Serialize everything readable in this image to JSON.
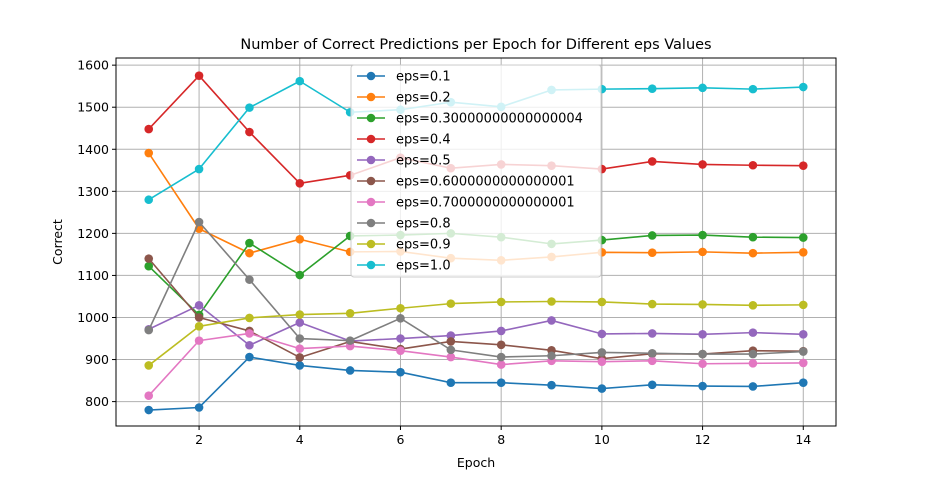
{
  "chart_data": {
    "type": "line",
    "title": "Number of Correct Predictions per Epoch for Different eps Values",
    "xlabel": "Epoch",
    "ylabel": "Correct",
    "xlim": [
      0.35,
      14.65
    ],
    "ylim": [
      742,
      1617
    ],
    "xticks": [
      2,
      4,
      6,
      8,
      10,
      12,
      14
    ],
    "yticks": [
      800,
      900,
      1000,
      1100,
      1200,
      1300,
      1400,
      1500,
      1600
    ],
    "grid": true,
    "legend_position": "upper-center",
    "x": [
      1,
      2,
      3,
      4,
      5,
      6,
      7,
      8,
      9,
      10,
      11,
      12,
      13,
      14
    ],
    "series": [
      {
        "name": "eps=0.1",
        "color": "#1f77b4",
        "values": [
          780,
          786,
          906,
          886,
          874,
          870,
          845,
          845,
          839,
          831,
          840,
          837,
          836,
          845
        ]
      },
      {
        "name": "eps=0.2",
        "color": "#ff7f0e",
        "values": [
          1391,
          1211,
          1153,
          1186,
          1156,
          1157,
          1141,
          1136,
          1144,
          1155,
          1154,
          1156,
          1153,
          1155
        ]
      },
      {
        "name": "eps=0.30000000000000004",
        "color": "#2ca02c",
        "values": [
          1122,
          1006,
          1177,
          1101,
          1194,
          1196,
          1200,
          1191,
          1175,
          1184,
          1195,
          1196,
          1191,
          1190
        ]
      },
      {
        "name": "eps=0.4",
        "color": "#d62728",
        "values": [
          1448,
          1575,
          1441,
          1319,
          1338,
          1380,
          1355,
          1364,
          1361,
          1353,
          1371,
          1364,
          1362,
          1361
        ]
      },
      {
        "name": "eps=0.5",
        "color": "#9467bd",
        "values": [
          972,
          1029,
          934,
          988,
          944,
          950,
          957,
          968,
          993,
          961,
          962,
          960,
          964,
          960
        ]
      },
      {
        "name": "eps=0.6000000000000001",
        "color": "#8c564b",
        "values": [
          1140,
          1000,
          968,
          905,
          943,
          925,
          943,
          935,
          922,
          902,
          914,
          913,
          921,
          920
        ]
      },
      {
        "name": "eps=0.7000000000000001",
        "color": "#e377c2",
        "values": [
          814,
          945,
          962,
          926,
          932,
          921,
          906,
          888,
          897,
          895,
          897,
          890,
          891,
          892
        ]
      },
      {
        "name": "eps=0.8",
        "color": "#7f7f7f",
        "values": [
          970,
          1227,
          1090,
          950,
          945,
          998,
          923,
          906,
          909,
          917,
          915,
          913,
          913,
          919
        ]
      },
      {
        "name": "eps=0.9",
        "color": "#bcbd22",
        "values": [
          886,
          979,
          999,
          1007,
          1010,
          1022,
          1033,
          1037,
          1038,
          1037,
          1032,
          1031,
          1029,
          1030
        ]
      },
      {
        "name": "eps=1.0",
        "color": "#17becf",
        "values": [
          1280,
          1353,
          1499,
          1562,
          1488,
          1494,
          1512,
          1501,
          1541,
          1543,
          1544,
          1546,
          1543,
          1548
        ]
      }
    ]
  }
}
